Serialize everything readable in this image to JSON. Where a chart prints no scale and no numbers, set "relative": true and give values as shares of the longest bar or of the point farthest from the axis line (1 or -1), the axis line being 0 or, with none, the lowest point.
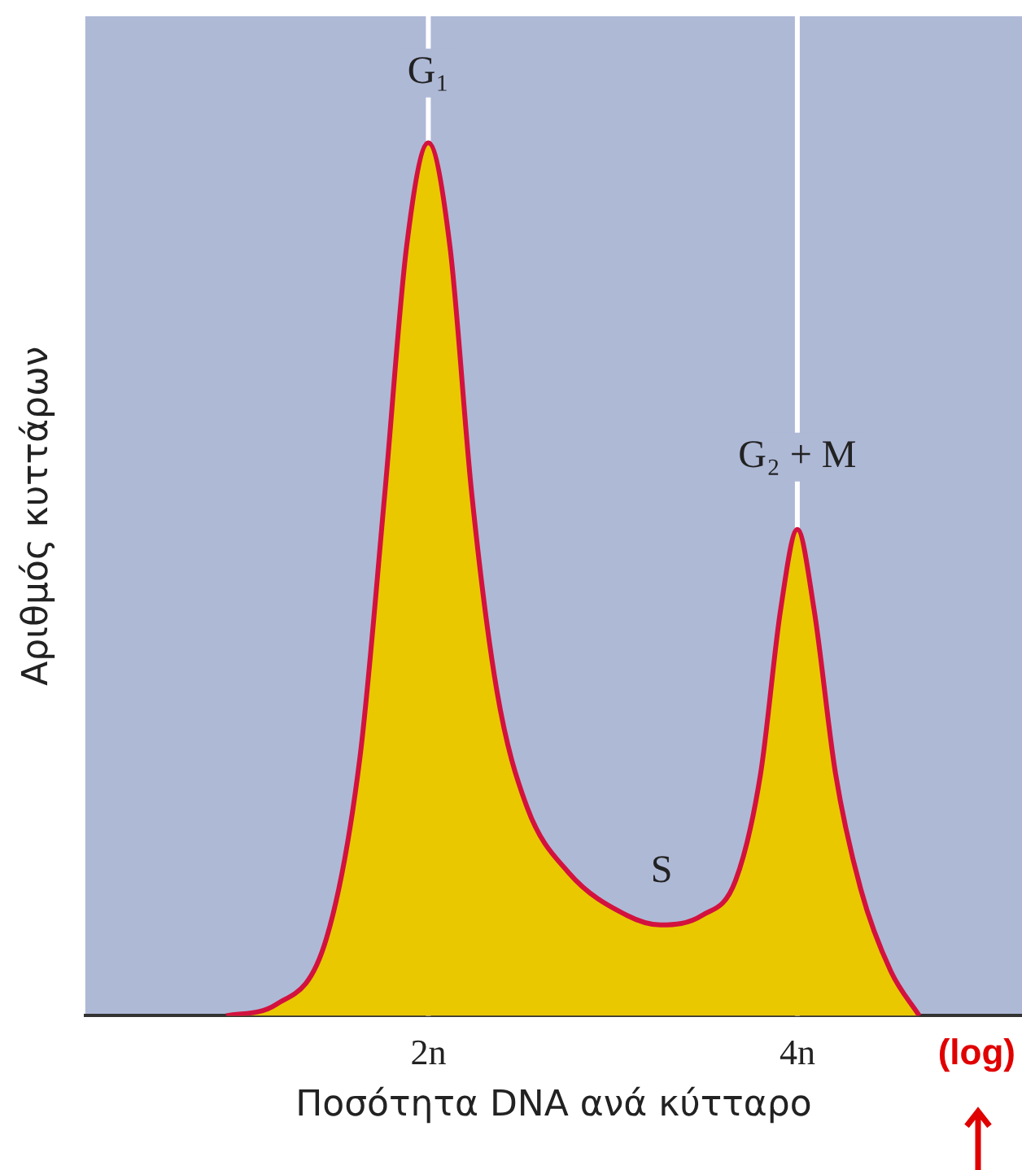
{
  "chart_data": {
    "type": "area",
    "relative": true,
    "log": "x",
    "xlabel": "Ποσότητα DNA ανά κύτταρο",
    "ylabel": "Αριθμός κυττάρων",
    "xlim": [
      1.05,
      6.1
    ],
    "xticks": [
      {
        "value": 2,
        "label": "2n"
      },
      {
        "value": 4,
        "label": "4n"
      }
    ],
    "x": [
      1.368,
      1.503,
      1.652,
      1.759,
      1.843,
      1.92,
      2,
      2.083,
      2.17,
      2.275,
      2.406,
      2.603,
      2.904,
      3.093,
      3.345,
      3.562,
      3.733,
      3.877,
      4,
      4.127,
      4.298,
      4.506,
      4.768,
      5.03
    ],
    "series": [
      {
        "color": "#e9c800",
        "values": [
          0,
          0.013,
          0.089,
          0.296,
          0.598,
          0.881,
          1,
          0.881,
          0.598,
          0.372,
          0.24,
          0.164,
          0.115,
          0.104,
          0.115,
          0.155,
          0.277,
          0.466,
          0.557,
          0.466,
          0.277,
          0.145,
          0.051,
          0
        ]
      }
    ],
    "ref_lines": [
      {
        "axis": "x",
        "value": 2,
        "color": "#ffffff"
      },
      {
        "axis": "x",
        "value": 4,
        "color": "#ffffff"
      }
    ],
    "annotations": [
      {
        "text": "G₁",
        "x": 2,
        "y": 1.08
      },
      {
        "text": "G₂ + M",
        "x": 4,
        "y": 0.64
      },
      {
        "text": "S",
        "x": 3.1,
        "y": 0.165
      },
      "(log)"
    ],
    "grid": false,
    "legend": false
  }
}
